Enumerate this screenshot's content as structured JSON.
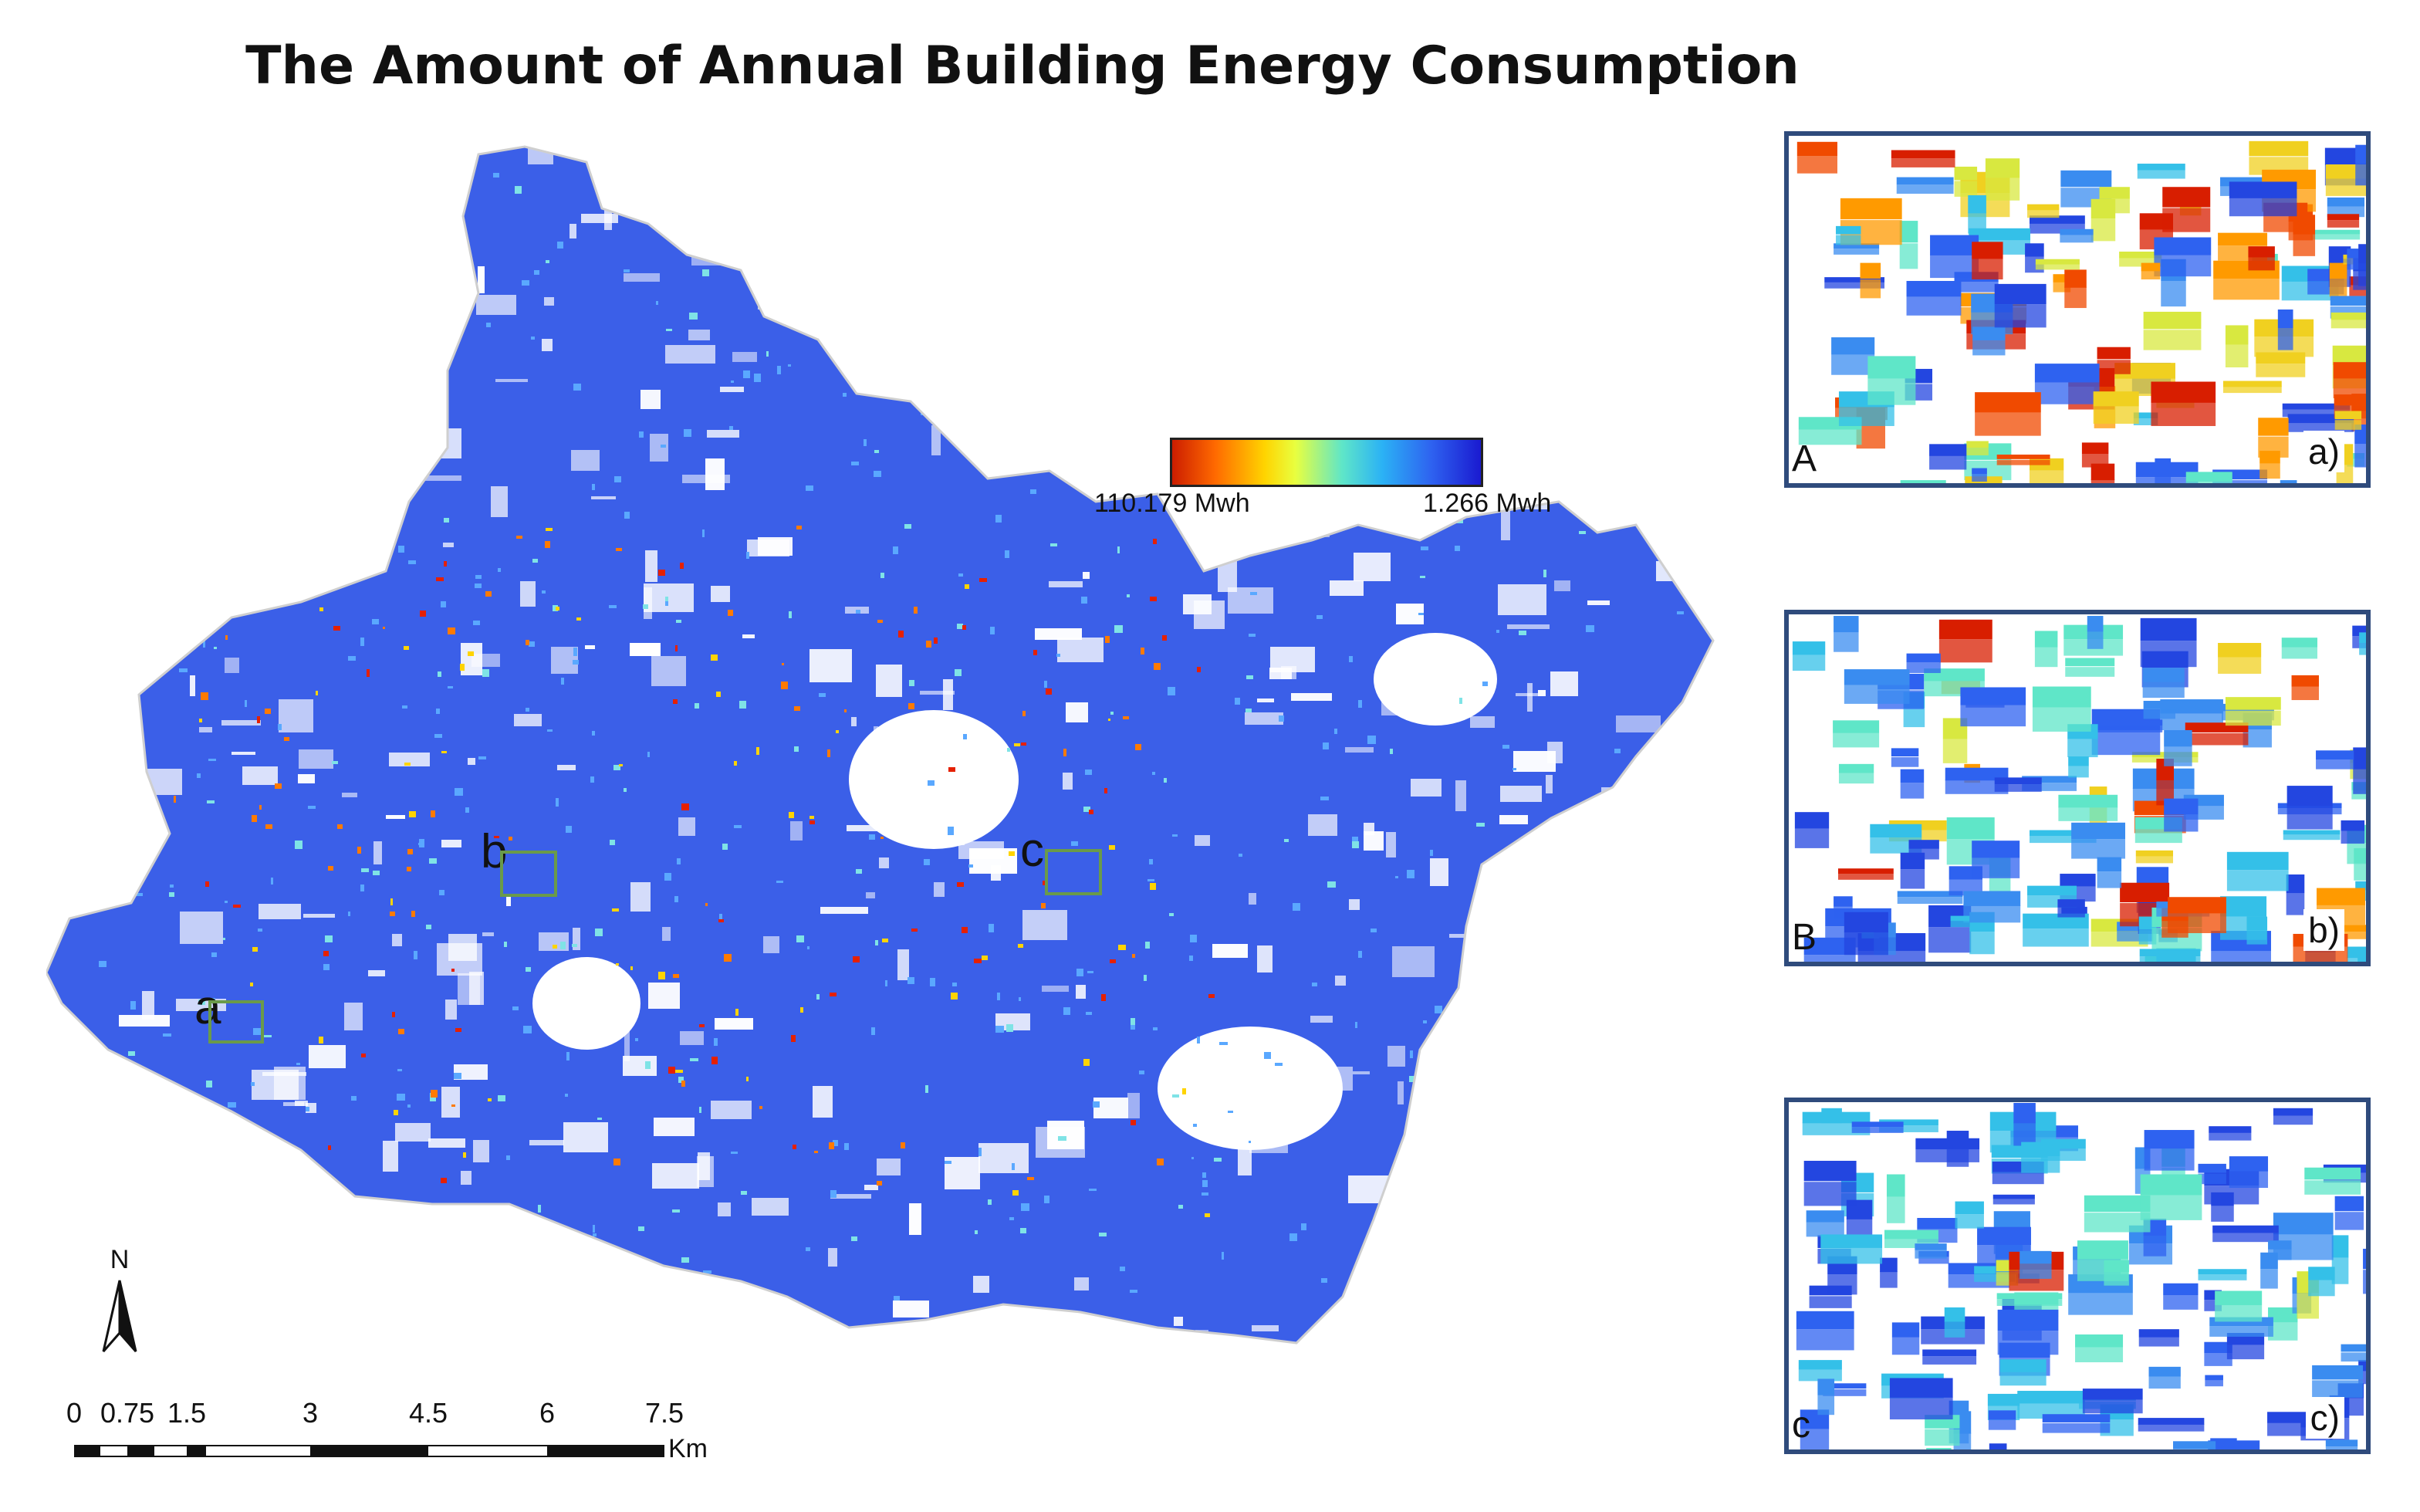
{
  "title": "The Amount of Annual Building Energy Consumption",
  "map": {
    "area_labels": [
      {
        "id": "a",
        "text": "a"
      },
      {
        "id": "b",
        "text": "b"
      },
      {
        "id": "c",
        "text": "c"
      }
    ],
    "colors": {
      "background": "#ffffff",
      "boundary": "#cfcfcf",
      "low_energy": "#2f52e0",
      "high_energy": "#e52000"
    }
  },
  "legend": {
    "high_label": "110.179 Mwh",
    "low_label": "1.266 Mwh",
    "gradient_colors": [
      "#cc1d00",
      "#ff6a00",
      "#ffd400",
      "#e8ff40",
      "#5fe6c8",
      "#2bb2f5",
      "#2e62f0",
      "#1a1ad0"
    ]
  },
  "north_arrow": {
    "letter": "N",
    "icon": "north-arrow-icon"
  },
  "scale_bar": {
    "ticks": [
      "0",
      "0.75",
      "1.5",
      "3",
      "4.5",
      "6",
      "7.5"
    ],
    "unit": "Km"
  },
  "insets": [
    {
      "id": "a",
      "tag": "a)",
      "corner_letter": "A"
    },
    {
      "id": "b",
      "tag": "b)",
      "corner_letter": "B"
    },
    {
      "id": "c",
      "tag": "c)",
      "corner_letter": "c"
    }
  ]
}
